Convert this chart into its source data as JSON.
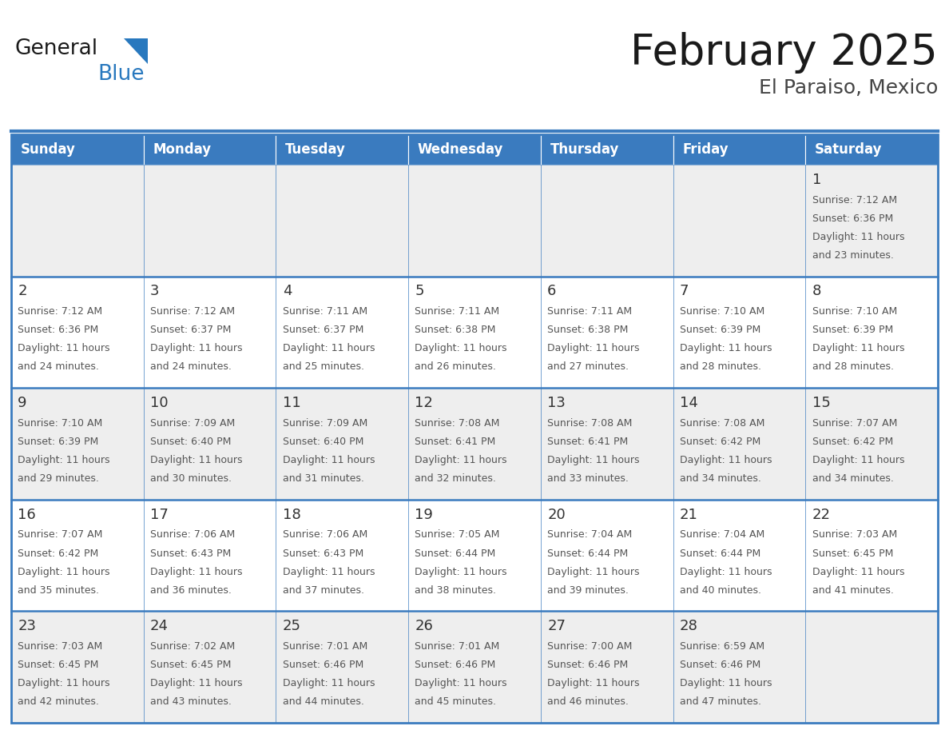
{
  "title": "February 2025",
  "subtitle": "El Paraiso, Mexico",
  "days_of_week": [
    "Sunday",
    "Monday",
    "Tuesday",
    "Wednesday",
    "Thursday",
    "Friday",
    "Saturday"
  ],
  "header_bg": "#3A7BBF",
  "header_text": "#FFFFFF",
  "cell_bg_white": "#FFFFFF",
  "cell_bg_gray": "#EEEEEE",
  "border_color": "#3A7BBF",
  "day_num_color": "#333333",
  "info_text_color": "#555555",
  "title_color": "#1a1a1a",
  "subtitle_color": "#444444",
  "logo_general_color": "#1a1a1a",
  "logo_blue_color": "#2878BE",
  "weeks": [
    [
      null,
      null,
      null,
      null,
      null,
      null,
      1
    ],
    [
      2,
      3,
      4,
      5,
      6,
      7,
      8
    ],
    [
      9,
      10,
      11,
      12,
      13,
      14,
      15
    ],
    [
      16,
      17,
      18,
      19,
      20,
      21,
      22
    ],
    [
      23,
      24,
      25,
      26,
      27,
      28,
      null
    ]
  ],
  "row_bg": [
    "#EEEEEE",
    "#FFFFFF",
    "#EEEEEE",
    "#FFFFFF",
    "#EEEEEE"
  ],
  "cell_data": {
    "1": {
      "sunrise": "7:12 AM",
      "sunset": "6:36 PM",
      "daylight": "11 hours",
      "daylight2": "and 23 minutes."
    },
    "2": {
      "sunrise": "7:12 AM",
      "sunset": "6:36 PM",
      "daylight": "11 hours",
      "daylight2": "and 24 minutes."
    },
    "3": {
      "sunrise": "7:12 AM",
      "sunset": "6:37 PM",
      "daylight": "11 hours",
      "daylight2": "and 24 minutes."
    },
    "4": {
      "sunrise": "7:11 AM",
      "sunset": "6:37 PM",
      "daylight": "11 hours",
      "daylight2": "and 25 minutes."
    },
    "5": {
      "sunrise": "7:11 AM",
      "sunset": "6:38 PM",
      "daylight": "11 hours",
      "daylight2": "and 26 minutes."
    },
    "6": {
      "sunrise": "7:11 AM",
      "sunset": "6:38 PM",
      "daylight": "11 hours",
      "daylight2": "and 27 minutes."
    },
    "7": {
      "sunrise": "7:10 AM",
      "sunset": "6:39 PM",
      "daylight": "11 hours",
      "daylight2": "and 28 minutes."
    },
    "8": {
      "sunrise": "7:10 AM",
      "sunset": "6:39 PM",
      "daylight": "11 hours",
      "daylight2": "and 28 minutes."
    },
    "9": {
      "sunrise": "7:10 AM",
      "sunset": "6:39 PM",
      "daylight": "11 hours",
      "daylight2": "and 29 minutes."
    },
    "10": {
      "sunrise": "7:09 AM",
      "sunset": "6:40 PM",
      "daylight": "11 hours",
      "daylight2": "and 30 minutes."
    },
    "11": {
      "sunrise": "7:09 AM",
      "sunset": "6:40 PM",
      "daylight": "11 hours",
      "daylight2": "and 31 minutes."
    },
    "12": {
      "sunrise": "7:08 AM",
      "sunset": "6:41 PM",
      "daylight": "11 hours",
      "daylight2": "and 32 minutes."
    },
    "13": {
      "sunrise": "7:08 AM",
      "sunset": "6:41 PM",
      "daylight": "11 hours",
      "daylight2": "and 33 minutes."
    },
    "14": {
      "sunrise": "7:08 AM",
      "sunset": "6:42 PM",
      "daylight": "11 hours",
      "daylight2": "and 34 minutes."
    },
    "15": {
      "sunrise": "7:07 AM",
      "sunset": "6:42 PM",
      "daylight": "11 hours",
      "daylight2": "and 34 minutes."
    },
    "16": {
      "sunrise": "7:07 AM",
      "sunset": "6:42 PM",
      "daylight": "11 hours",
      "daylight2": "and 35 minutes."
    },
    "17": {
      "sunrise": "7:06 AM",
      "sunset": "6:43 PM",
      "daylight": "11 hours",
      "daylight2": "and 36 minutes."
    },
    "18": {
      "sunrise": "7:06 AM",
      "sunset": "6:43 PM",
      "daylight": "11 hours",
      "daylight2": "and 37 minutes."
    },
    "19": {
      "sunrise": "7:05 AM",
      "sunset": "6:44 PM",
      "daylight": "11 hours",
      "daylight2": "and 38 minutes."
    },
    "20": {
      "sunrise": "7:04 AM",
      "sunset": "6:44 PM",
      "daylight": "11 hours",
      "daylight2": "and 39 minutes."
    },
    "21": {
      "sunrise": "7:04 AM",
      "sunset": "6:44 PM",
      "daylight": "11 hours",
      "daylight2": "and 40 minutes."
    },
    "22": {
      "sunrise": "7:03 AM",
      "sunset": "6:45 PM",
      "daylight": "11 hours",
      "daylight2": "and 41 minutes."
    },
    "23": {
      "sunrise": "7:03 AM",
      "sunset": "6:45 PM",
      "daylight": "11 hours",
      "daylight2": "and 42 minutes."
    },
    "24": {
      "sunrise": "7:02 AM",
      "sunset": "6:45 PM",
      "daylight": "11 hours",
      "daylight2": "and 43 minutes."
    },
    "25": {
      "sunrise": "7:01 AM",
      "sunset": "6:46 PM",
      "daylight": "11 hours",
      "daylight2": "and 44 minutes."
    },
    "26": {
      "sunrise": "7:01 AM",
      "sunset": "6:46 PM",
      "daylight": "11 hours",
      "daylight2": "and 45 minutes."
    },
    "27": {
      "sunrise": "7:00 AM",
      "sunset": "6:46 PM",
      "daylight": "11 hours",
      "daylight2": "and 46 minutes."
    },
    "28": {
      "sunrise": "6:59 AM",
      "sunset": "6:46 PM",
      "daylight": "11 hours",
      "daylight2": "and 47 minutes."
    }
  }
}
